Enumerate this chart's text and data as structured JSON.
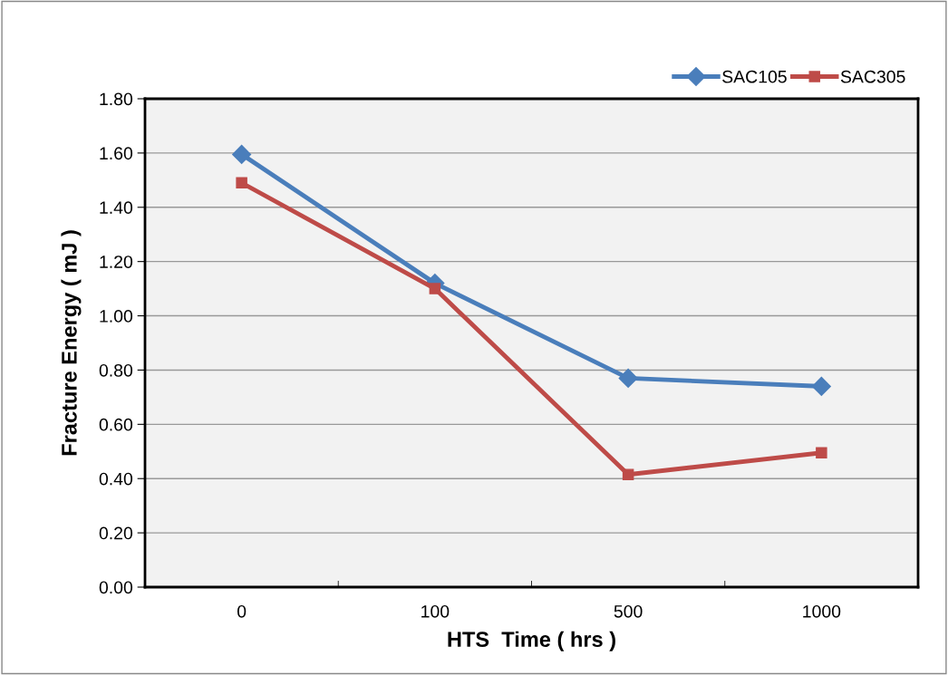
{
  "chart_data": {
    "type": "line",
    "xlabel": "HTS  Time ( hrs )",
    "ylabel": "Fracture Energy ( mJ )",
    "categories": [
      "0",
      "100",
      "500",
      "1000"
    ],
    "series": [
      {
        "name": "SAC105",
        "color": "#4a7ebb",
        "marker": "diamond",
        "values": [
          1.595,
          1.12,
          0.77,
          0.74
        ]
      },
      {
        "name": "SAC305",
        "color": "#be4b48",
        "marker": "square",
        "values": [
          1.49,
          1.1,
          0.415,
          0.495
        ]
      }
    ],
    "ylim": [
      0,
      1.8
    ],
    "yticks": [
      {
        "value": 0,
        "label": "0.00"
      },
      {
        "value": 0.2,
        "label": "0.20"
      },
      {
        "value": 0.4,
        "label": "0.40"
      },
      {
        "value": 0.6,
        "label": "0.60"
      },
      {
        "value": 0.8,
        "label": "0.80"
      },
      {
        "value": 1.0,
        "label": "1.00"
      },
      {
        "value": 1.2,
        "label": "1.20"
      },
      {
        "value": 1.4,
        "label": "1.40"
      },
      {
        "value": 1.6,
        "label": "1.60"
      },
      {
        "value": 1.8,
        "label": "1.80"
      }
    ],
    "grid": "y",
    "legend": "top right",
    "line_style": "solid"
  }
}
